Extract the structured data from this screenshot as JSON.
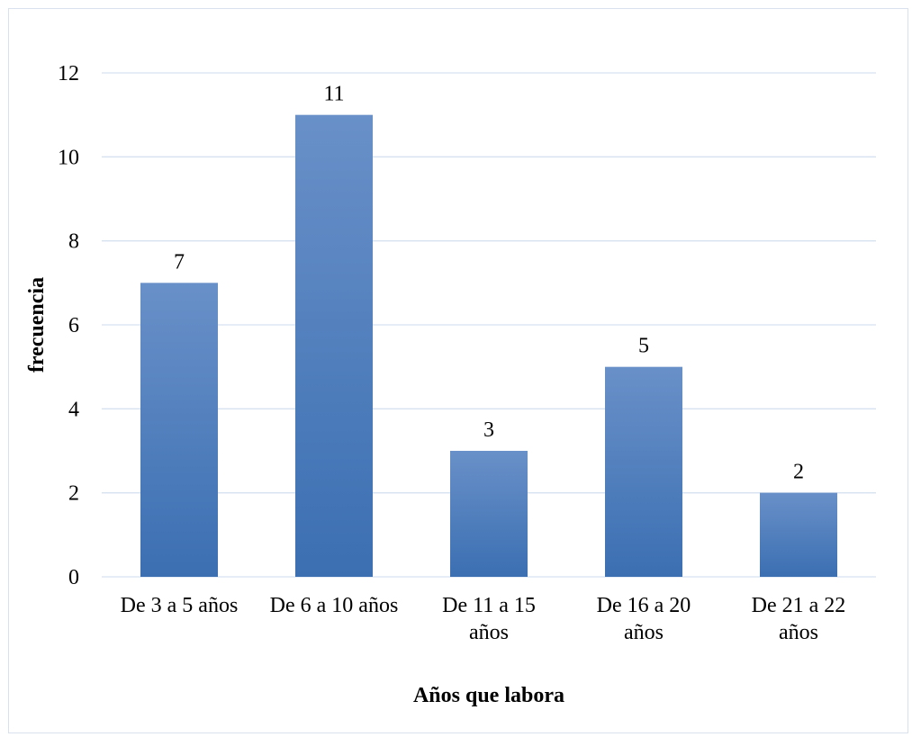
{
  "chart_data": {
    "type": "bar",
    "categories": [
      [
        "De 3 a 5 años"
      ],
      [
        "De 6 a 10 años"
      ],
      [
        "De 11 a 15",
        "años"
      ],
      [
        "De 16 a 20",
        "años"
      ],
      [
        "De 21 a 22",
        "años"
      ]
    ],
    "values": [
      7,
      11,
      3,
      5,
      2
    ],
    "xlabel": "Años que labora",
    "ylabel": "frecuencia",
    "ylim": [
      0,
      12
    ],
    "yticks": [
      "0",
      "2",
      "4",
      "6",
      "8",
      "10",
      "12"
    ],
    "grid": true,
    "bar_color": "#4a7ebf",
    "bar_color_top": "#6990c8",
    "bar_color_bottom": "#3b6fb2",
    "gridline_color": "#d6e2f0"
  }
}
